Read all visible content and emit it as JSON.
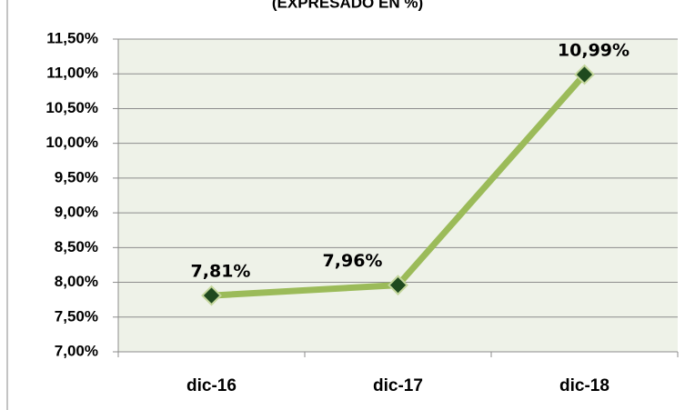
{
  "chart_data": {
    "type": "line",
    "title": "(EXPRESADO EN %)",
    "categories": [
      "dic-16",
      "dic-17",
      "dic-18"
    ],
    "series": [
      {
        "name": null,
        "color": "#9bbb59",
        "marker_color": "#1f4a1f",
        "values": [
          7.81,
          7.96,
          10.99
        ],
        "value_labels": [
          "7,81%",
          "7,96%",
          "10,99%"
        ]
      }
    ],
    "ylim": [
      7,
      11.5
    ],
    "yticks": [
      {
        "value": 7,
        "label": "7,00%"
      },
      {
        "value": 7.5,
        "label": "7,50%"
      },
      {
        "value": 8,
        "label": "8,00%"
      },
      {
        "value": 8.5,
        "label": "8,50%"
      },
      {
        "value": 9,
        "label": "9,00%"
      },
      {
        "value": 9.5,
        "label": "9,50%"
      },
      {
        "value": 10,
        "label": "10,00%"
      },
      {
        "value": 10.5,
        "label": "10,50%"
      },
      {
        "value": 11,
        "label": "11,00%"
      },
      {
        "value": 11.5,
        "label": "11,50%"
      }
    ],
    "grid": true
  }
}
